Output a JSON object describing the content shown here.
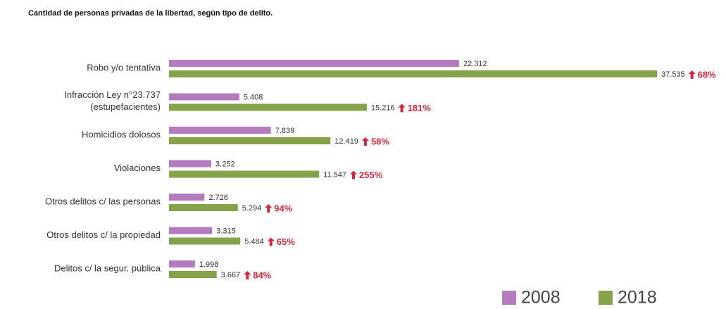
{
  "chart_data": {
    "type": "hbar",
    "title": "Cantidad de personas privadas de la libertad, según tipo de delito.",
    "categories": [
      "Robo y/o tentativa",
      "Infracción Ley n°23.737\n(estupefacientes)",
      "Homicidios dolosos",
      "Violaciones",
      "Otros delitos c/ las personas",
      "Otros delitos c/ la propiedad",
      "Delitos c/ la segur. pública"
    ],
    "series": [
      {
        "name": "2008",
        "color": "#b57bbf",
        "values": [
          22312,
          5408,
          7839,
          3252,
          2726,
          3315,
          1998
        ],
        "value_labels": [
          "22.312",
          "5.408",
          "7.839",
          "3.252",
          "2.726",
          "3.315",
          "1.998"
        ]
      },
      {
        "name": "2018",
        "color": "#86a34b",
        "values": [
          37535,
          15216,
          12419,
          11547,
          5294,
          5484,
          3667
        ],
        "value_labels": [
          "37.535",
          "15.216",
          "12.419",
          "11.547",
          "5.294",
          "5.484",
          "3.667"
        ]
      }
    ],
    "annotations": [
      "68%",
      "181%",
      "58%",
      "255%",
      "94%",
      "65%",
      "84%"
    ]
  }
}
